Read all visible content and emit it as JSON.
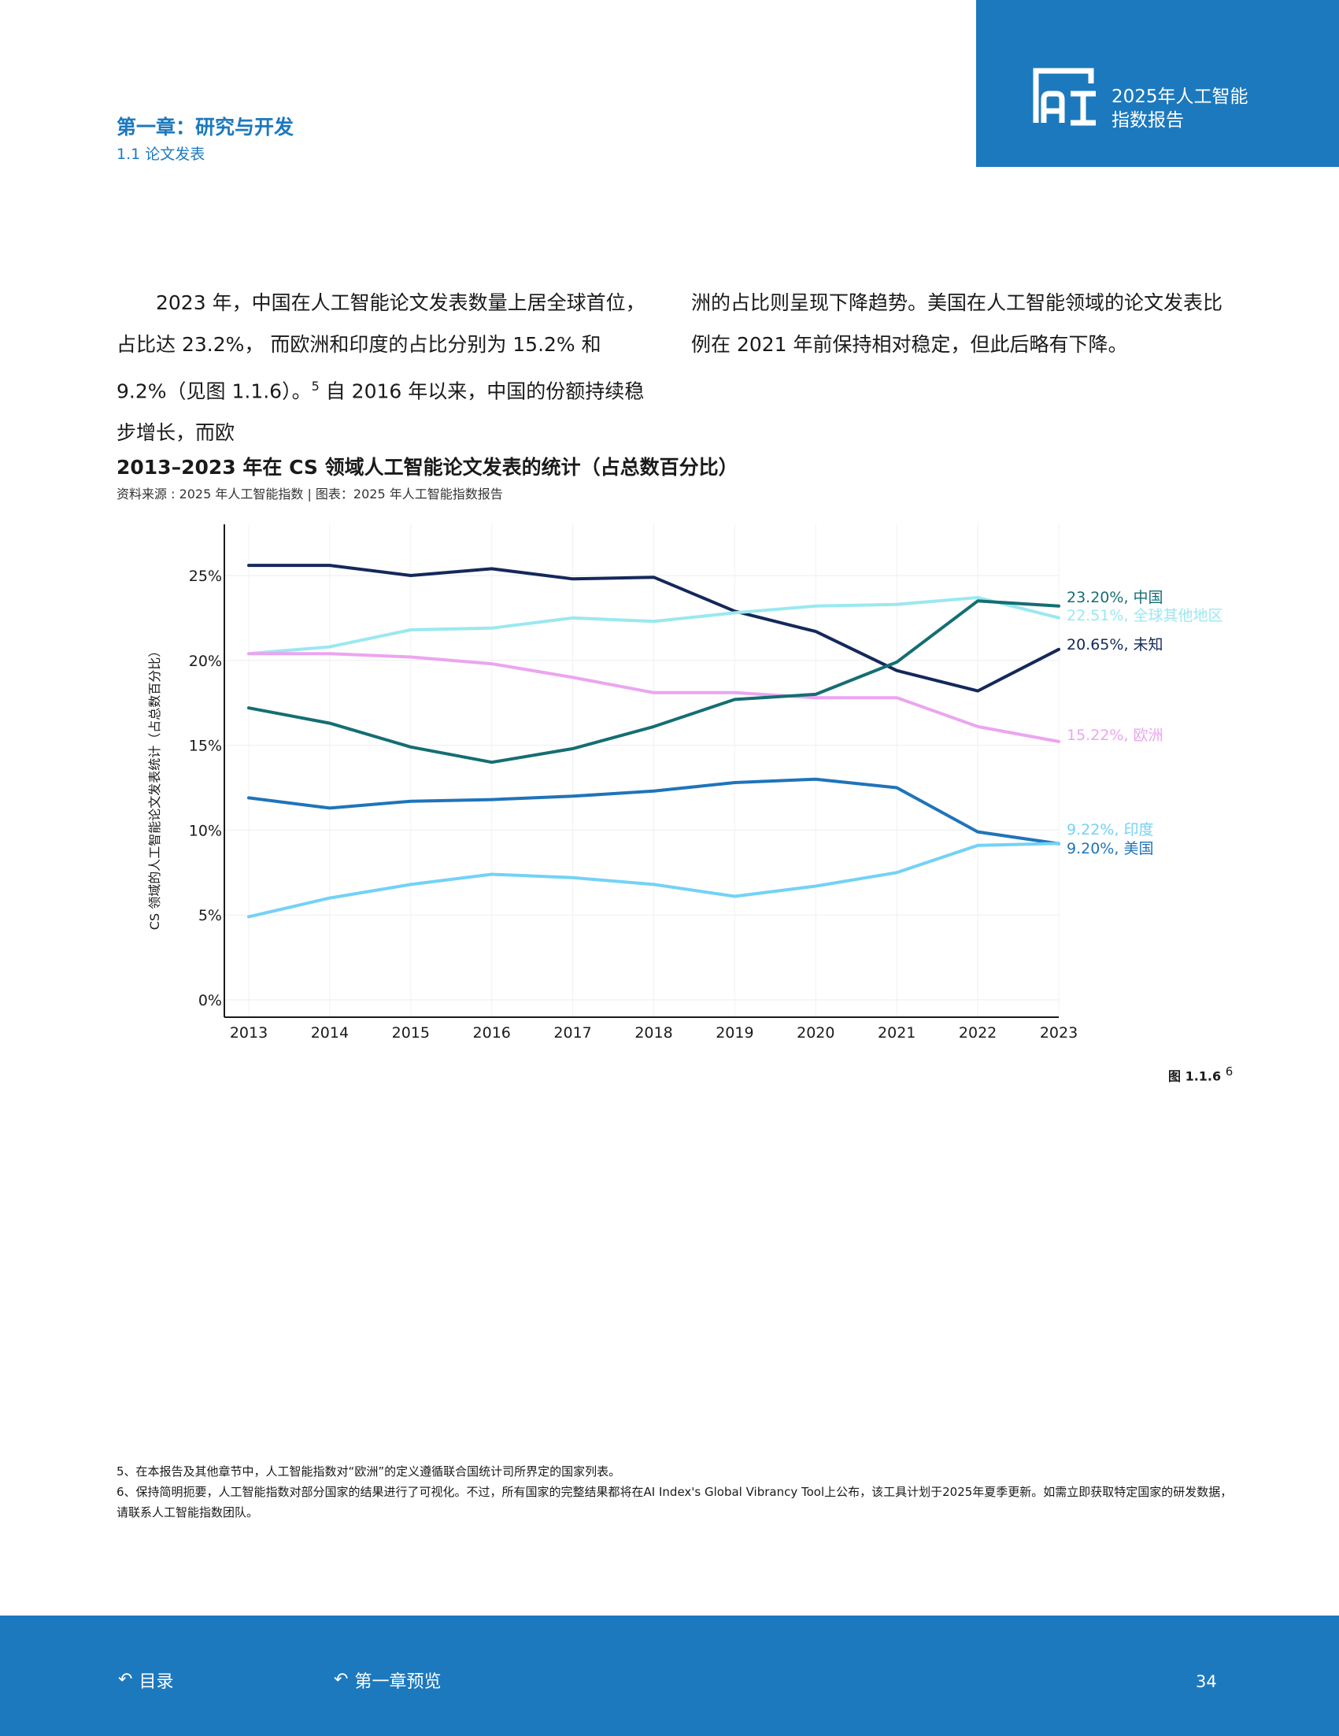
{
  "header": {
    "report_title": "2025年人工智能\n指数报告",
    "chapter": "第一章：研究与开发",
    "section": "1.1 论文发表",
    "logo_icon": "ai-index-logo-icon"
  },
  "body": {
    "left_para": "　　2023 年，中国在人工智能论文发表数量上居全球首位，占比达 23.2%， 而欧洲和印度的占比分别为 15.2% 和 9.2%（见图 1.1.6）。",
    "left_sup": "5",
    "left_tail": " 自 2016 年以来，中国的份额持续稳步增长，而欧",
    "right_para": "洲的占比则呈现下降趋势。美国在人工智能领域的论文发表比例在 2021 年前保持相对稳定，但此后略有下降。"
  },
  "figure": {
    "title": "2013–2023 年在 CS 领域人工智能论文发表的统计（占总数百分比）",
    "source": "资料来源 : 2025 年人工智能指数 | 图表：2025 年人工智能指数报告",
    "label": "图 1.1.6",
    "label_sup": "6"
  },
  "chart_data": {
    "type": "line",
    "title": "2013–2023 年在 CS 领域人工智能论文发表的统计（占总数百分比）",
    "ylabel": "CS 领域的人工智能论文发表统计（占总数百分比）",
    "xlabel": "",
    "x": [
      "2013",
      "2014",
      "2015",
      "2016",
      "2017",
      "2018",
      "2019",
      "2020",
      "2021",
      "2022",
      "2023"
    ],
    "ylim": [
      0,
      28
    ],
    "yticks": [
      0,
      5,
      10,
      15,
      20,
      25
    ],
    "ytick_labels": [
      "0%",
      "5%",
      "10%",
      "15%",
      "20%",
      "25%"
    ],
    "grid": true,
    "series": [
      {
        "name": "未知",
        "end_label": "20.65%, 未知",
        "color": "#14285a",
        "values": [
          25.6,
          25.6,
          25.0,
          25.4,
          24.8,
          24.9,
          22.9,
          21.7,
          19.4,
          18.2,
          20.65
        ]
      },
      {
        "name": "全球其他地区",
        "end_label": "22.51%, 全球其他地区",
        "color": "#9ae8f0",
        "values": [
          20.4,
          20.8,
          21.8,
          21.9,
          22.5,
          22.3,
          22.8,
          23.2,
          23.3,
          23.7,
          22.51
        ]
      },
      {
        "name": "欧洲",
        "end_label": "15.22%, 欧洲",
        "color": "#eba5f0",
        "values": [
          20.4,
          20.4,
          20.2,
          19.8,
          19.0,
          18.1,
          18.1,
          17.8,
          17.8,
          16.1,
          15.22
        ]
      },
      {
        "name": "中国",
        "end_label": "23.20%, 中国",
        "color": "#146e73",
        "values": [
          17.2,
          16.3,
          14.9,
          14.0,
          14.8,
          16.1,
          17.7,
          18.0,
          19.9,
          23.5,
          23.2
        ]
      },
      {
        "name": "美国",
        "end_label": "9.20%, 美国",
        "color": "#1f74b9",
        "values": [
          11.9,
          11.3,
          11.7,
          11.8,
          12.0,
          12.3,
          12.8,
          13.0,
          12.5,
          9.9,
          9.2
        ]
      },
      {
        "name": "印度",
        "end_label": "9.22%, 印度",
        "color": "#73d2f5",
        "values": [
          4.9,
          6.0,
          6.8,
          7.4,
          7.2,
          6.8,
          6.1,
          6.7,
          7.5,
          9.1,
          9.22
        ]
      }
    ]
  },
  "notes": {
    "note5": "5、在本报告及其他章节中，人工智能指数对“欧洲”的定义遵循联合国统计司所界定的国家列表。",
    "note6": "6、保持简明扼要，人工智能指数对部分国家的结果进行了可视化。不过，所有国家的完整结果都将在AI Index's Global Vibrancy Tool上公布，该工具计划于2025年夏季更新。如需立即获取特定国家的研发数据，请联系人工智能指数团队。"
  },
  "footer": {
    "toc_label": "目录",
    "chapter_overview_label": "第一章预览",
    "page_number": "34",
    "back_icon": "return-arrow-icon"
  },
  "colors": {
    "brand_blue": "#1c79be",
    "text": "#1a1a1a"
  }
}
